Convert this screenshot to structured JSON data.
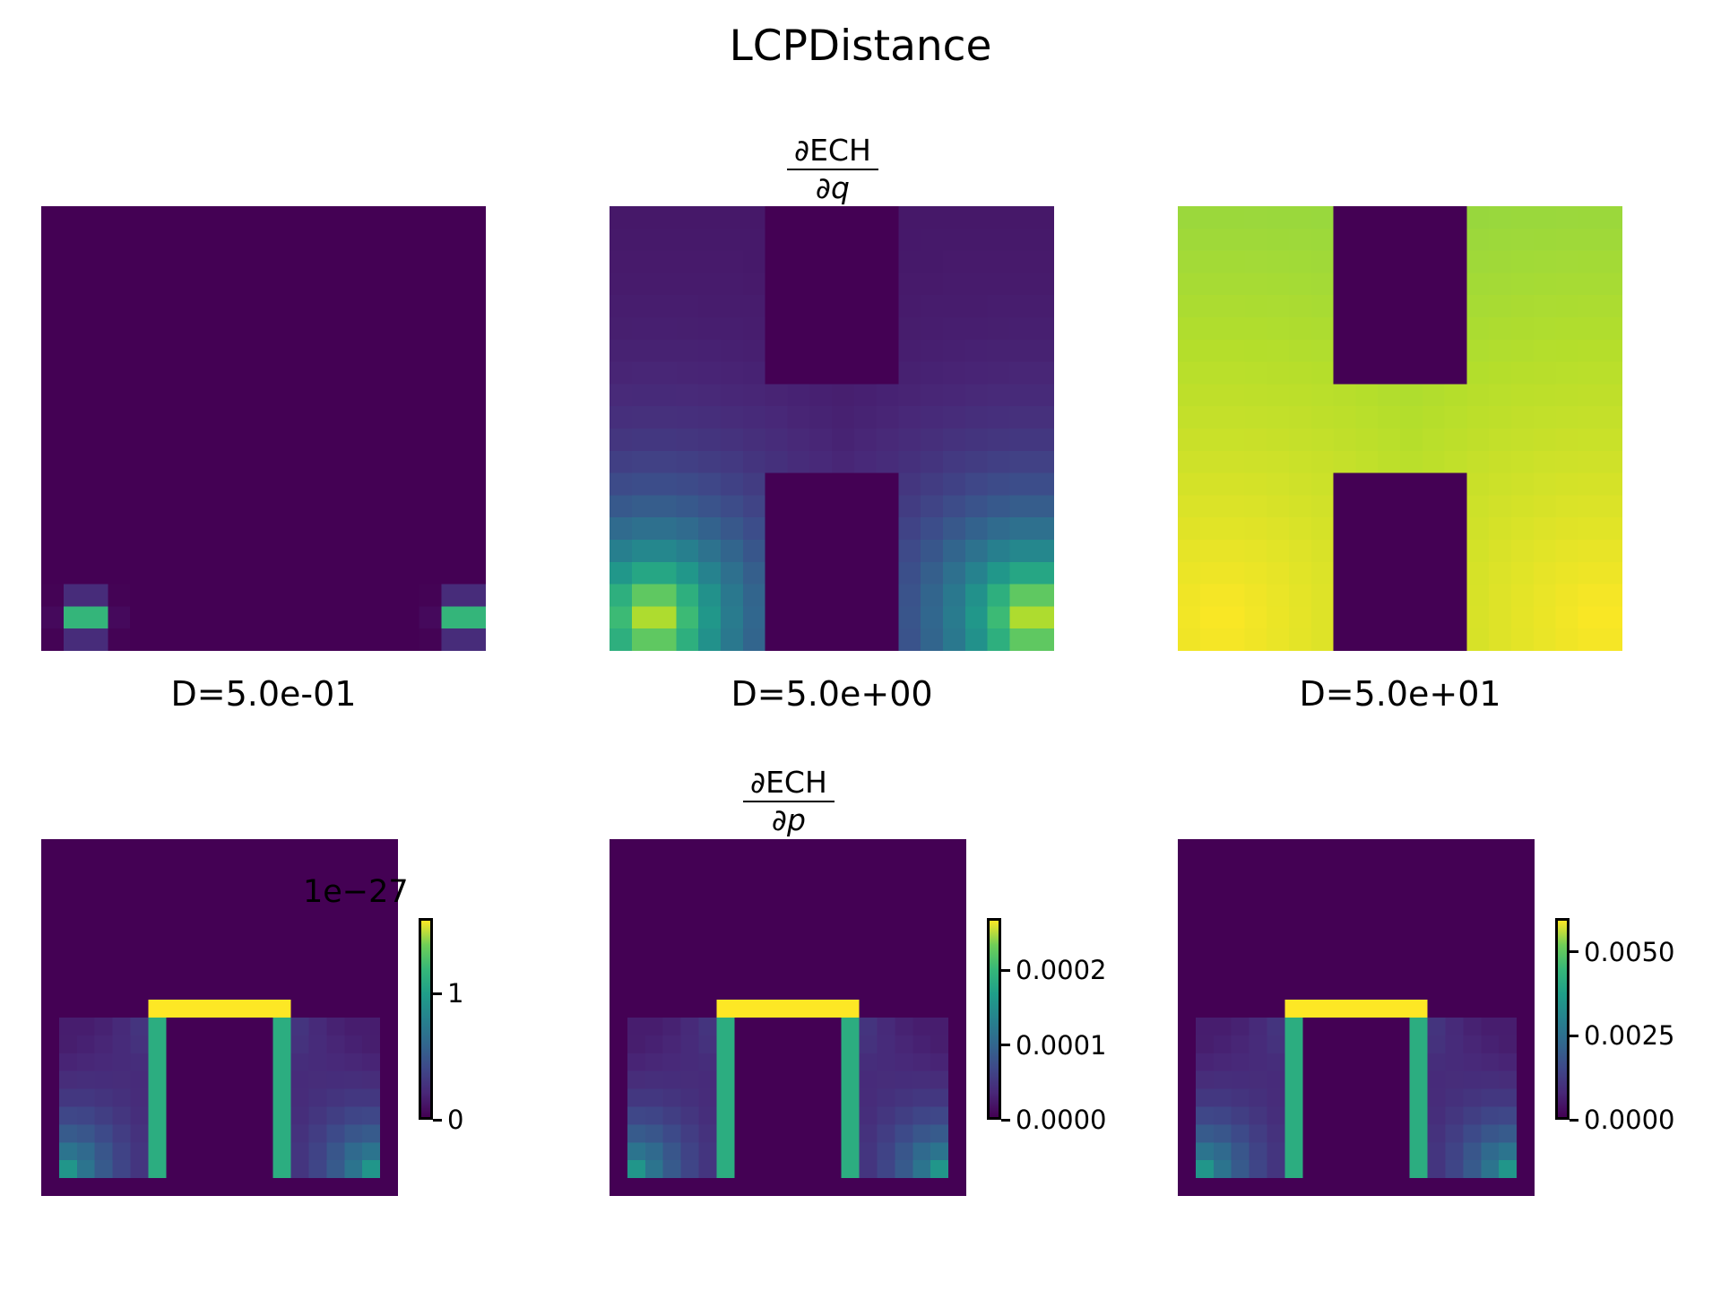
{
  "figure": {
    "suptitle": "LCPDistance",
    "row_titles": [
      {
        "numerator": "∂ECH",
        "denominator": "∂q"
      },
      {
        "numerator": "∂ECH",
        "denominator": "∂p"
      }
    ]
  },
  "chart_data": [
    {
      "type": "heatmap",
      "panel": "top-1",
      "xlabel": "D=5.0e-01",
      "colormap": "viridis",
      "grid": false,
      "shape": "H",
      "peaks": "bottom-left and bottom-right corners"
    },
    {
      "type": "heatmap",
      "panel": "top-2",
      "xlabel": "D=5.0e+00",
      "colormap": "viridis",
      "grid": false,
      "shape": "H",
      "peaks": "bottom-left and bottom-right corners"
    },
    {
      "type": "heatmap",
      "panel": "top-3",
      "xlabel": "D=5.0e+01",
      "colormap": "viridis",
      "grid": false,
      "shape": "H",
      "peaks": "bottom corners, nearly uniform"
    },
    {
      "type": "heatmap",
      "panel": "bottom-1",
      "colormap": "viridis",
      "grid": false,
      "shape": "Π (inverted U)",
      "colorbar": {
        "offset_text": "1e−27",
        "range": [
          0,
          1.6
        ],
        "ticks": [
          {
            "value": 0,
            "label": "0"
          },
          {
            "value": 1,
            "label": "1"
          }
        ]
      }
    },
    {
      "type": "heatmap",
      "panel": "bottom-2",
      "colormap": "viridis",
      "grid": false,
      "shape": "Π (inverted U)",
      "colorbar": {
        "range": [
          0,
          0.00027
        ],
        "ticks": [
          {
            "value": 0,
            "label": "0.0000"
          },
          {
            "value": 0.0001,
            "label": "0.0001"
          },
          {
            "value": 0.0002,
            "label": "0.0002"
          }
        ]
      }
    },
    {
      "type": "heatmap",
      "panel": "bottom-3",
      "colormap": "viridis",
      "grid": false,
      "shape": "Π (inverted U)",
      "colorbar": {
        "range": [
          0,
          0.006
        ],
        "ticks": [
          {
            "value": 0,
            "label": "0.0000"
          },
          {
            "value": 0.0025,
            "label": "0.0025"
          },
          {
            "value": 0.005,
            "label": "0.0050"
          }
        ]
      }
    }
  ]
}
